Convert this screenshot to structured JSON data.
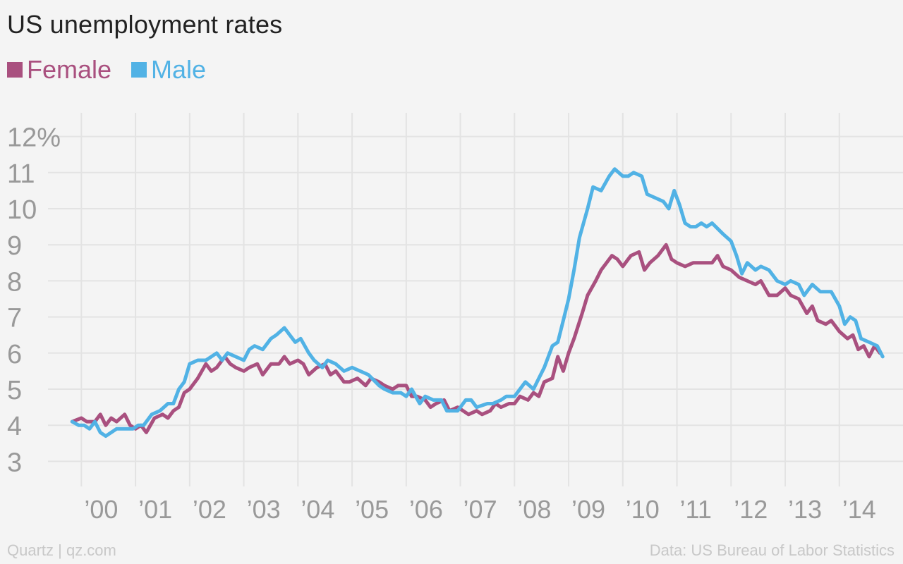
{
  "title": "US unemployment rates",
  "footer": {
    "source_left": "Quartz | qz.com",
    "source_right": "Data: US Bureau of Labor Statistics"
  },
  "chart_data": {
    "type": "line",
    "title": "US unemployment rates",
    "ylim": [
      2.5,
      12.5
    ],
    "y_ticks": [
      3,
      4,
      5,
      6,
      7,
      8,
      9,
      10,
      11,
      12
    ],
    "y_tick_labels": [
      "3",
      "4",
      "5",
      "6",
      "7",
      "8",
      "9",
      "10",
      "11",
      "12%"
    ],
    "xlim": [
      1999.8,
      2014.85
    ],
    "x_ticks": [
      2000,
      2001,
      2002,
      2003,
      2004,
      2005,
      2006,
      2007,
      2008,
      2009,
      2010,
      2011,
      2012,
      2013,
      2014
    ],
    "x_tick_labels": [
      "’00",
      "’01",
      "’02",
      "’03",
      "’04",
      "’05",
      "’06",
      "’07",
      "’08",
      "’09",
      "’10",
      "’11",
      "’12",
      "’13",
      "’14"
    ],
    "grid": true,
    "legend_position": "top-left",
    "series": [
      {
        "name": "Female",
        "color": "#a9507f",
        "points": [
          [
            1999.83,
            4.1
          ],
          [
            2000.0,
            4.2
          ],
          [
            2000.1,
            4.1
          ],
          [
            2000.25,
            4.1
          ],
          [
            2000.35,
            4.3
          ],
          [
            2000.45,
            4.0
          ],
          [
            2000.55,
            4.2
          ],
          [
            2000.65,
            4.1
          ],
          [
            2000.8,
            4.3
          ],
          [
            2000.9,
            4.0
          ],
          [
            2001.0,
            3.9
          ],
          [
            2001.1,
            4.0
          ],
          [
            2001.2,
            3.8
          ],
          [
            2001.35,
            4.2
          ],
          [
            2001.5,
            4.3
          ],
          [
            2001.6,
            4.2
          ],
          [
            2001.7,
            4.4
          ],
          [
            2001.8,
            4.5
          ],
          [
            2001.9,
            4.9
          ],
          [
            2002.0,
            5.0
          ],
          [
            2002.15,
            5.3
          ],
          [
            2002.3,
            5.7
          ],
          [
            2002.4,
            5.5
          ],
          [
            2002.5,
            5.6
          ],
          [
            2002.65,
            5.9
          ],
          [
            2002.75,
            5.7
          ],
          [
            2002.85,
            5.6
          ],
          [
            2003.0,
            5.5
          ],
          [
            2003.1,
            5.6
          ],
          [
            2003.25,
            5.7
          ],
          [
            2003.35,
            5.4
          ],
          [
            2003.5,
            5.7
          ],
          [
            2003.65,
            5.7
          ],
          [
            2003.75,
            5.9
          ],
          [
            2003.85,
            5.7
          ],
          [
            2004.0,
            5.8
          ],
          [
            2004.1,
            5.7
          ],
          [
            2004.2,
            5.4
          ],
          [
            2004.35,
            5.6
          ],
          [
            2004.5,
            5.7
          ],
          [
            2004.6,
            5.4
          ],
          [
            2004.7,
            5.5
          ],
          [
            2004.85,
            5.2
          ],
          [
            2004.95,
            5.2
          ],
          [
            2005.1,
            5.3
          ],
          [
            2005.25,
            5.1
          ],
          [
            2005.35,
            5.3
          ],
          [
            2005.5,
            5.2
          ],
          [
            2005.6,
            5.1
          ],
          [
            2005.75,
            5.0
          ],
          [
            2005.85,
            5.1
          ],
          [
            2006.0,
            5.1
          ],
          [
            2006.1,
            4.8
          ],
          [
            2006.2,
            4.8
          ],
          [
            2006.35,
            4.7
          ],
          [
            2006.45,
            4.5
          ],
          [
            2006.55,
            4.6
          ],
          [
            2006.7,
            4.7
          ],
          [
            2006.8,
            4.4
          ],
          [
            2006.95,
            4.5
          ],
          [
            2007.05,
            4.4
          ],
          [
            2007.15,
            4.3
          ],
          [
            2007.3,
            4.4
          ],
          [
            2007.4,
            4.3
          ],
          [
            2007.55,
            4.4
          ],
          [
            2007.65,
            4.6
          ],
          [
            2007.75,
            4.5
          ],
          [
            2007.9,
            4.6
          ],
          [
            2008.0,
            4.6
          ],
          [
            2008.1,
            4.8
          ],
          [
            2008.25,
            4.7
          ],
          [
            2008.35,
            4.9
          ],
          [
            2008.45,
            4.8
          ],
          [
            2008.55,
            5.2
          ],
          [
            2008.7,
            5.3
          ],
          [
            2008.8,
            5.9
          ],
          [
            2008.9,
            5.5
          ],
          [
            2009.0,
            6.0
          ],
          [
            2009.1,
            6.4
          ],
          [
            2009.25,
            7.1
          ],
          [
            2009.35,
            7.6
          ],
          [
            2009.5,
            8.0
          ],
          [
            2009.6,
            8.3
          ],
          [
            2009.7,
            8.5
          ],
          [
            2009.8,
            8.7
          ],
          [
            2009.9,
            8.6
          ],
          [
            2010.0,
            8.4
          ],
          [
            2010.15,
            8.7
          ],
          [
            2010.3,
            8.8
          ],
          [
            2010.4,
            8.3
          ],
          [
            2010.5,
            8.5
          ],
          [
            2010.65,
            8.7
          ],
          [
            2010.8,
            9.0
          ],
          [
            2010.9,
            8.6
          ],
          [
            2011.0,
            8.5
          ],
          [
            2011.15,
            8.4
          ],
          [
            2011.3,
            8.5
          ],
          [
            2011.5,
            8.5
          ],
          [
            2011.65,
            8.5
          ],
          [
            2011.75,
            8.7
          ],
          [
            2011.85,
            8.4
          ],
          [
            2012.0,
            8.3
          ],
          [
            2012.15,
            8.1
          ],
          [
            2012.3,
            8.0
          ],
          [
            2012.45,
            7.9
          ],
          [
            2012.55,
            8.0
          ],
          [
            2012.7,
            7.6
          ],
          [
            2012.85,
            7.6
          ],
          [
            2013.0,
            7.8
          ],
          [
            2013.1,
            7.6
          ],
          [
            2013.25,
            7.5
          ],
          [
            2013.4,
            7.1
          ],
          [
            2013.5,
            7.3
          ],
          [
            2013.6,
            6.9
          ],
          [
            2013.75,
            6.8
          ],
          [
            2013.85,
            6.9
          ],
          [
            2014.0,
            6.6
          ],
          [
            2014.15,
            6.4
          ],
          [
            2014.25,
            6.5
          ],
          [
            2014.35,
            6.1
          ],
          [
            2014.45,
            6.2
          ],
          [
            2014.55,
            5.9
          ],
          [
            2014.65,
            6.2
          ],
          [
            2014.75,
            6.0
          ]
        ]
      },
      {
        "name": "Male",
        "color": "#51b2e5",
        "points": [
          [
            1999.83,
            4.1
          ],
          [
            1999.95,
            4.0
          ],
          [
            2000.05,
            4.0
          ],
          [
            2000.15,
            3.9
          ],
          [
            2000.25,
            4.1
          ],
          [
            2000.35,
            3.8
          ],
          [
            2000.45,
            3.7
          ],
          [
            2000.55,
            3.8
          ],
          [
            2000.65,
            3.9
          ],
          [
            2000.8,
            3.9
          ],
          [
            2000.95,
            3.9
          ],
          [
            2001.05,
            4.0
          ],
          [
            2001.15,
            4.0
          ],
          [
            2001.3,
            4.3
          ],
          [
            2001.45,
            4.4
          ],
          [
            2001.6,
            4.6
          ],
          [
            2001.7,
            4.6
          ],
          [
            2001.8,
            5.0
          ],
          [
            2001.9,
            5.2
          ],
          [
            2002.0,
            5.7
          ],
          [
            2002.15,
            5.8
          ],
          [
            2002.3,
            5.8
          ],
          [
            2002.5,
            6.0
          ],
          [
            2002.6,
            5.8
          ],
          [
            2002.7,
            6.0
          ],
          [
            2002.85,
            5.9
          ],
          [
            2003.0,
            5.8
          ],
          [
            2003.1,
            6.1
          ],
          [
            2003.2,
            6.2
          ],
          [
            2003.35,
            6.1
          ],
          [
            2003.5,
            6.4
          ],
          [
            2003.6,
            6.5
          ],
          [
            2003.75,
            6.7
          ],
          [
            2003.85,
            6.5
          ],
          [
            2003.95,
            6.3
          ],
          [
            2004.05,
            6.4
          ],
          [
            2004.2,
            6.0
          ],
          [
            2004.3,
            5.8
          ],
          [
            2004.45,
            5.6
          ],
          [
            2004.55,
            5.8
          ],
          [
            2004.7,
            5.7
          ],
          [
            2004.85,
            5.5
          ],
          [
            2005.0,
            5.6
          ],
          [
            2005.15,
            5.5
          ],
          [
            2005.3,
            5.4
          ],
          [
            2005.5,
            5.1
          ],
          [
            2005.6,
            5.0
          ],
          [
            2005.75,
            4.9
          ],
          [
            2005.9,
            4.9
          ],
          [
            2006.0,
            4.8
          ],
          [
            2006.1,
            5.0
          ],
          [
            2006.25,
            4.6
          ],
          [
            2006.35,
            4.8
          ],
          [
            2006.5,
            4.7
          ],
          [
            2006.65,
            4.7
          ],
          [
            2006.75,
            4.4
          ],
          [
            2006.85,
            4.4
          ],
          [
            2006.95,
            4.4
          ],
          [
            2007.0,
            4.5
          ],
          [
            2007.1,
            4.7
          ],
          [
            2007.2,
            4.7
          ],
          [
            2007.3,
            4.5
          ],
          [
            2007.5,
            4.6
          ],
          [
            2007.6,
            4.6
          ],
          [
            2007.75,
            4.7
          ],
          [
            2007.85,
            4.8
          ],
          [
            2008.0,
            4.8
          ],
          [
            2008.1,
            5.0
          ],
          [
            2008.2,
            5.2
          ],
          [
            2008.35,
            5.0
          ],
          [
            2008.45,
            5.3
          ],
          [
            2008.55,
            5.6
          ],
          [
            2008.7,
            6.2
          ],
          [
            2008.8,
            6.3
          ],
          [
            2008.9,
            6.9
          ],
          [
            2009.0,
            7.5
          ],
          [
            2009.1,
            8.3
          ],
          [
            2009.2,
            9.2
          ],
          [
            2009.35,
            10.0
          ],
          [
            2009.45,
            10.6
          ],
          [
            2009.6,
            10.5
          ],
          [
            2009.75,
            10.9
          ],
          [
            2009.85,
            11.1
          ],
          [
            2010.0,
            10.9
          ],
          [
            2010.1,
            10.9
          ],
          [
            2010.2,
            11.0
          ],
          [
            2010.35,
            10.9
          ],
          [
            2010.45,
            10.4
          ],
          [
            2010.6,
            10.3
          ],
          [
            2010.75,
            10.2
          ],
          [
            2010.85,
            10.0
          ],
          [
            2010.95,
            10.5
          ],
          [
            2011.05,
            10.1
          ],
          [
            2011.15,
            9.6
          ],
          [
            2011.25,
            9.5
          ],
          [
            2011.35,
            9.5
          ],
          [
            2011.45,
            9.6
          ],
          [
            2011.55,
            9.5
          ],
          [
            2011.65,
            9.6
          ],
          [
            2011.85,
            9.3
          ],
          [
            2012.0,
            9.1
          ],
          [
            2012.1,
            8.7
          ],
          [
            2012.2,
            8.2
          ],
          [
            2012.3,
            8.5
          ],
          [
            2012.45,
            8.3
          ],
          [
            2012.55,
            8.4
          ],
          [
            2012.7,
            8.3
          ],
          [
            2012.85,
            8.0
          ],
          [
            2013.0,
            7.9
          ],
          [
            2013.1,
            8.0
          ],
          [
            2013.25,
            7.9
          ],
          [
            2013.35,
            7.6
          ],
          [
            2013.5,
            7.9
          ],
          [
            2013.65,
            7.7
          ],
          [
            2013.75,
            7.7
          ],
          [
            2013.85,
            7.7
          ],
          [
            2014.0,
            7.3
          ],
          [
            2014.1,
            6.8
          ],
          [
            2014.2,
            7.0
          ],
          [
            2014.3,
            6.9
          ],
          [
            2014.4,
            6.4
          ],
          [
            2014.55,
            6.3
          ],
          [
            2014.7,
            6.2
          ],
          [
            2014.8,
            5.9
          ]
        ]
      }
    ]
  }
}
